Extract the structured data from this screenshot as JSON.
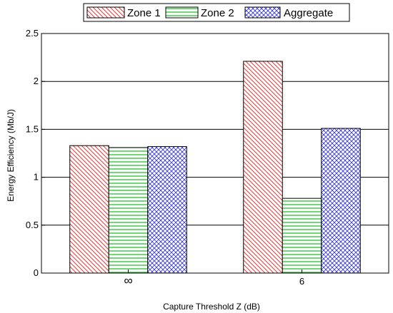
{
  "chart_data": {
    "type": "bar",
    "title": "",
    "xlabel": "Capture Threshold Z  (dB)",
    "ylabel": "Energy Efficiency (Mb/J)",
    "categories": [
      "∞",
      "6"
    ],
    "series": [
      {
        "name": "Zone 1",
        "values": [
          1.33,
          2.21
        ],
        "color": "#e23a3a",
        "pattern": "diagonal-hatch"
      },
      {
        "name": "Zone 2",
        "values": [
          1.31,
          0.78
        ],
        "color": "#22c42a",
        "pattern": "horizontal-lines"
      },
      {
        "name": "Aggregate",
        "values": [
          1.32,
          1.51
        ],
        "color": "#3a3ae0",
        "pattern": "crosshatch"
      }
    ],
    "ylim": [
      0,
      2.5
    ],
    "yticks": [
      "0",
      "0.5",
      "1",
      "1.5",
      "2",
      "2.5"
    ],
    "grid": "horizontal",
    "legend": "top-center"
  }
}
